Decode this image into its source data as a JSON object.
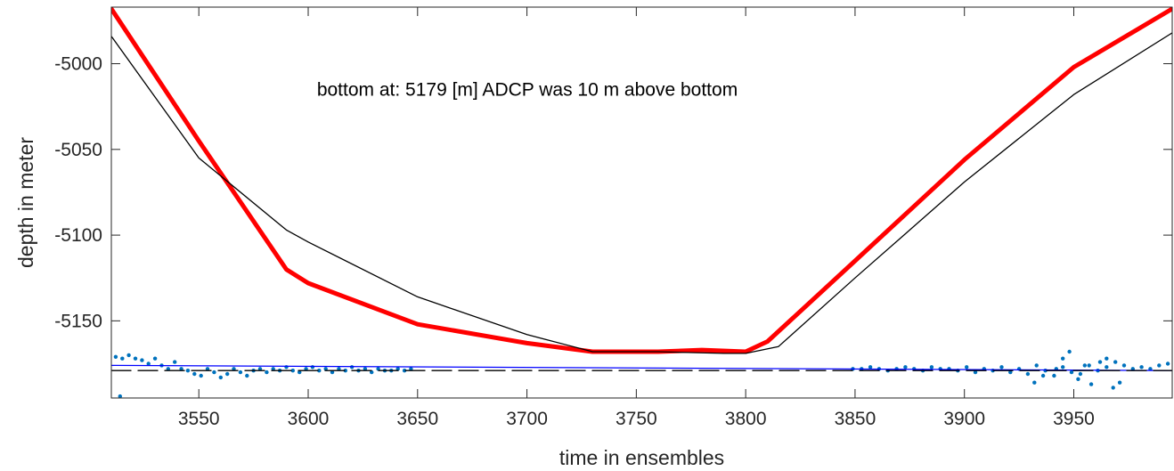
{
  "chart_data": {
    "type": "line",
    "title": "",
    "xlabel": "time in ensembles",
    "ylabel": "depth in meter",
    "xlim": [
      3510,
      3995
    ],
    "ylim": [
      -5195,
      -4967
    ],
    "xticks": [
      3550,
      3600,
      3650,
      3700,
      3750,
      3800,
      3850,
      3900,
      3950
    ],
    "yticks": [
      -5000,
      -5050,
      -5100,
      -5150
    ],
    "grid": false,
    "annotation": {
      "text": "bottom at: 5179 [m]   ADCP was 10 m above bottom",
      "x": 3604,
      "y": -5015
    },
    "series": [
      {
        "color": "#ff0000",
        "style": "thick-line",
        "x": [
          3510,
          3550,
          3590,
          3600,
          3650,
          3700,
          3730,
          3760,
          3780,
          3800,
          3810,
          3850,
          3900,
          3950,
          3995
        ],
        "y": [
          -4968,
          -5045,
          -5120,
          -5128,
          -5152,
          -5163,
          -5168,
          -5168,
          -5167,
          -5168,
          -5162,
          -5115,
          -5056,
          -5002,
          -4968
        ]
      },
      {
        "color": "#000000",
        "style": "thin-line",
        "x": [
          3510,
          3550,
          3590,
          3600,
          3650,
          3700,
          3730,
          3760,
          3790,
          3800,
          3815,
          3850,
          3900,
          3950,
          3995
        ],
        "y": [
          -4984,
          -5055,
          -5097,
          -5104,
          -5136,
          -5158,
          -5168,
          -5168,
          -5169,
          -5169,
          -5165,
          -5125,
          -5069,
          -5018,
          -4982
        ]
      },
      {
        "color": "#0072bd",
        "style": "dots",
        "x": [
          3512,
          3515,
          3518,
          3521,
          3524,
          3527,
          3530,
          3533,
          3536,
          3539,
          3542,
          3545,
          3548,
          3551,
          3554,
          3557,
          3560,
          3563,
          3566,
          3569,
          3572,
          3575,
          3578,
          3581,
          3584,
          3587,
          3590,
          3593,
          3596,
          3599,
          3602,
          3605,
          3608,
          3611,
          3614,
          3617,
          3620,
          3623,
          3626,
          3629,
          3632,
          3635,
          3638,
          3641,
          3644,
          3647,
          3849,
          3853,
          3857,
          3861,
          3865,
          3869,
          3873,
          3877,
          3881,
          3885,
          3889,
          3893,
          3897,
          3901,
          3905,
          3909,
          3913,
          3917,
          3921,
          3925,
          3929,
          3933,
          3937,
          3941,
          3945,
          3949,
          3953,
          3957,
          3961,
          3965,
          3969,
          3973,
          3977,
          3981,
          3985,
          3989,
          3993,
          3514,
          3932,
          3936,
          3942,
          3945,
          3948,
          3952,
          3955,
          3958,
          3962,
          3965,
          3968,
          3971
        ],
        "y": [
          -5171,
          -5172,
          -5170,
          -5172,
          -5173,
          -5175,
          -5172,
          -5176,
          -5178,
          -5174,
          -5178,
          -5179,
          -5181,
          -5182,
          -5178,
          -5180,
          -5183,
          -5181,
          -5178,
          -5180,
          -5182,
          -5179,
          -5178,
          -5180,
          -5178,
          -5179,
          -5177,
          -5179,
          -5180,
          -5178,
          -5177,
          -5179,
          -5178,
          -5180,
          -5178,
          -5179,
          -5177,
          -5179,
          -5178,
          -5180,
          -5178,
          -5179,
          -5179,
          -5178,
          -5179,
          -5178,
          -5178,
          -5178,
          -5177,
          -5178,
          -5179,
          -5178,
          -5177,
          -5178,
          -5179,
          -5177,
          -5178,
          -5178,
          -5179,
          -5177,
          -5180,
          -5178,
          -5179,
          -5177,
          -5180,
          -5178,
          -5181,
          -5176,
          -5179,
          -5182,
          -5177,
          -5180,
          -5181,
          -5176,
          -5179,
          -5177,
          -5174,
          -5176,
          -5178,
          -5177,
          -5178,
          -5176,
          -5175,
          -5194,
          -5186,
          -5182,
          -5178,
          -5172,
          -5168,
          -5184,
          -5176,
          -5187,
          -5174,
          -5172,
          -5189,
          -5186
        ],
        "dot_size": 2.2
      },
      {
        "color": "#0000ff",
        "style": "thin-line",
        "x": [
          3510,
          3995
        ],
        "y": [
          -5176,
          -5179
        ]
      },
      {
        "color": "#000000",
        "style": "dashed",
        "x": [
          3510,
          3995
        ],
        "y": [
          -5179,
          -5179
        ]
      }
    ]
  }
}
